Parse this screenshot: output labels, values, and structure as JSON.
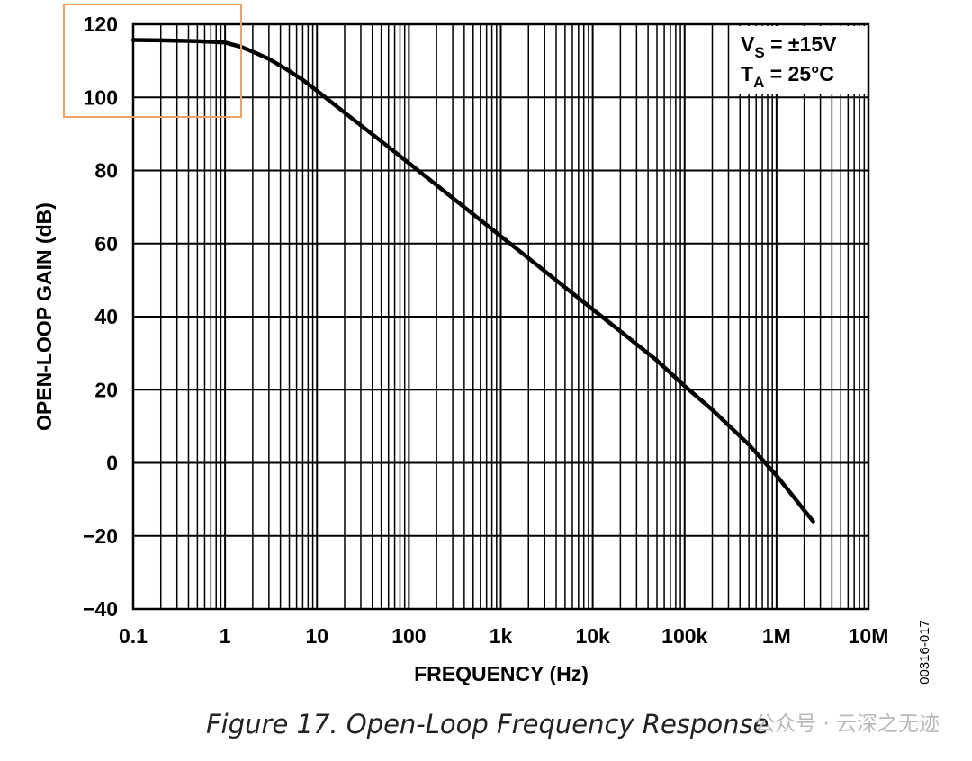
{
  "chart_data": {
    "type": "line",
    "xscale": "log",
    "xlim": [
      0.1,
      10000000
    ],
    "ylim": [
      -40,
      120
    ],
    "xlabel": "FREQUENCY (Hz)",
    "ylabel": "OPEN-LOOP GAIN (dB)",
    "x_ticks": [
      {
        "value": 0.1,
        "label": "0.1"
      },
      {
        "value": 1,
        "label": "1"
      },
      {
        "value": 10,
        "label": "10"
      },
      {
        "value": 100,
        "label": "100"
      },
      {
        "value": 1000,
        "label": "1k"
      },
      {
        "value": 10000,
        "label": "10k"
      },
      {
        "value": 100000,
        "label": "100k"
      },
      {
        "value": 1000000,
        "label": "1M"
      },
      {
        "value": 10000000,
        "label": "10M"
      }
    ],
    "y_ticks": [
      {
        "value": 120,
        "label": "120"
      },
      {
        "value": 100,
        "label": "100"
      },
      {
        "value": 80,
        "label": "80"
      },
      {
        "value": 60,
        "label": "60"
      },
      {
        "value": 40,
        "label": "40"
      },
      {
        "value": 20,
        "label": "20"
      },
      {
        "value": 0,
        "label": "0"
      },
      {
        "value": -20,
        "label": "−20"
      },
      {
        "value": -40,
        "label": "−40"
      }
    ],
    "grid": true,
    "series": [
      {
        "x": [
          0.1,
          0.2,
          0.5,
          1,
          1.5,
          2,
          3,
          5,
          7,
          10,
          20,
          50,
          100,
          200,
          500,
          1000,
          2000,
          5000,
          10000,
          20000,
          50000,
          100000,
          200000,
          500000,
          1000000,
          1500000,
          2000000,
          2500000
        ],
        "y": [
          115.7,
          115.6,
          115.4,
          115.0,
          113.8,
          112.5,
          110.5,
          107.2,
          104.8,
          101.8,
          95.8,
          88.0,
          82.0,
          76.0,
          68.0,
          62.0,
          56.0,
          48.0,
          42.0,
          36.0,
          28.0,
          21.0,
          14.5,
          5.0,
          -3.5,
          -9.0,
          -13.0,
          -16.0
        ]
      }
    ],
    "annotations": {
      "supply": {
        "main": "V",
        "sub": "S",
        "rest": " = ±15V"
      },
      "temperature": {
        "main": "T",
        "sub": "A",
        "rest": " = 25°C"
      }
    },
    "legend_position": "top-right",
    "highlight_color": "#f0a060",
    "line_color": "#000000",
    "grid_color": "#000000"
  },
  "figure_code": "00316-017",
  "caption": "Figure 17. Open-Loop Frequency Response",
  "watermark": "公众号 · 云深之无迹"
}
